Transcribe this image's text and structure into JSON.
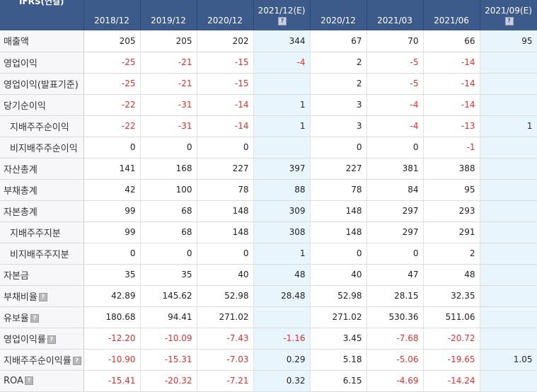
{
  "table": {
    "label_header": "IFRS(연결)",
    "columns": [
      {
        "label": "2018/12",
        "estimate": false,
        "info": false
      },
      {
        "label": "2019/12",
        "estimate": false,
        "info": false
      },
      {
        "label": "2020/12",
        "estimate": false,
        "info": false
      },
      {
        "label": "2021/12(E)",
        "estimate": true,
        "info": true
      },
      {
        "label": "2020/12",
        "estimate": false,
        "info": false
      },
      {
        "label": "2021/03",
        "estimate": false,
        "info": false
      },
      {
        "label": "2021/06",
        "estimate": false,
        "info": false
      },
      {
        "label": "2021/09(E)",
        "estimate": true,
        "info": true
      }
    ],
    "info_glyph": "?",
    "rows": [
      {
        "label": "매출액",
        "indent": false,
        "info": false,
        "values": [
          "205",
          "205",
          "202",
          "344",
          "67",
          "70",
          "66",
          "95"
        ]
      },
      {
        "label": "영업이익",
        "indent": false,
        "info": false,
        "values": [
          "-25",
          "-21",
          "-15",
          "-4",
          "2",
          "-5",
          "-14",
          ""
        ]
      },
      {
        "label": "영업이익(발표기준)",
        "indent": false,
        "info": false,
        "values": [
          "-25",
          "-21",
          "-15",
          "",
          "2",
          "-5",
          "-14",
          ""
        ]
      },
      {
        "label": "당기순이익",
        "indent": false,
        "info": false,
        "values": [
          "-22",
          "-31",
          "-14",
          "1",
          "3",
          "-4",
          "-14",
          ""
        ]
      },
      {
        "label": "지배주주순이익",
        "indent": true,
        "info": false,
        "values": [
          "-22",
          "-31",
          "-14",
          "1",
          "3",
          "-4",
          "-13",
          "1"
        ]
      },
      {
        "label": "비지배주주순이익",
        "indent": true,
        "info": false,
        "values": [
          "0",
          "0",
          "0",
          "",
          "0",
          "0",
          "-1",
          ""
        ]
      },
      {
        "label": "자산총계",
        "indent": false,
        "info": false,
        "values": [
          "141",
          "168",
          "227",
          "397",
          "227",
          "381",
          "388",
          ""
        ]
      },
      {
        "label": "부채총계",
        "indent": false,
        "info": false,
        "values": [
          "42",
          "100",
          "78",
          "88",
          "78",
          "84",
          "95",
          ""
        ]
      },
      {
        "label": "자본총계",
        "indent": false,
        "info": false,
        "values": [
          "99",
          "68",
          "148",
          "309",
          "148",
          "297",
          "293",
          ""
        ]
      },
      {
        "label": "지배주주지분",
        "indent": true,
        "info": false,
        "values": [
          "99",
          "68",
          "148",
          "308",
          "148",
          "297",
          "291",
          ""
        ]
      },
      {
        "label": "비지배주주지분",
        "indent": true,
        "info": false,
        "values": [
          "0",
          "0",
          "0",
          "1",
          "0",
          "0",
          "2",
          ""
        ]
      },
      {
        "label": "자본금",
        "indent": false,
        "info": false,
        "values": [
          "35",
          "35",
          "40",
          "48",
          "40",
          "47",
          "48",
          ""
        ]
      },
      {
        "label": "부채비율",
        "indent": false,
        "info": true,
        "values": [
          "42.89",
          "145.62",
          "52.98",
          "28.48",
          "52.98",
          "28.15",
          "32.35",
          ""
        ]
      },
      {
        "label": "유보율",
        "indent": false,
        "info": true,
        "values": [
          "180.68",
          "94.41",
          "271.02",
          "",
          "271.02",
          "530.36",
          "511.06",
          ""
        ]
      },
      {
        "label": "영업이익률",
        "indent": false,
        "info": true,
        "values": [
          "-12.20",
          "-10.09",
          "-7.43",
          "-1.16",
          "3.45",
          "-7.68",
          "-20.72",
          ""
        ]
      },
      {
        "label": "지배주주순이익률",
        "indent": false,
        "info": true,
        "values": [
          "-10.90",
          "-15.31",
          "-7.03",
          "0.29",
          "5.18",
          "-5.06",
          "-19.65",
          "1.05"
        ]
      },
      {
        "label": "ROA",
        "indent": false,
        "info": true,
        "values": [
          "-15.41",
          "-20.32",
          "-7.21",
          "0.32",
          "6.15",
          "-4.69",
          "-14.24",
          ""
        ]
      }
    ]
  }
}
